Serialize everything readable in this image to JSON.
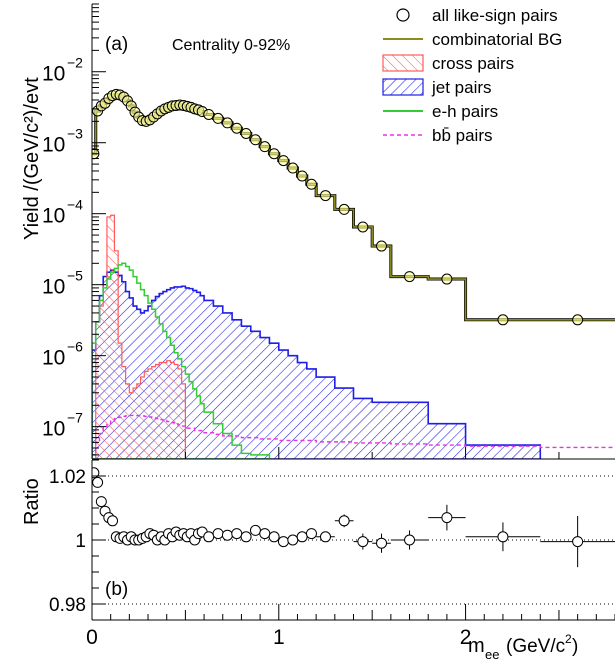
{
  "chart_data": [
    {
      "type": "histogram",
      "panel_label": "(a)",
      "annotation": "Centrality 0-92%",
      "ylabel": "Yield /(GeV/c²)/evt",
      "xlabel": "m_ee (GeV/c²)",
      "y_scale": "log",
      "xlim": [
        0,
        2.8
      ],
      "ylim": [
        3.5e-08,
        0.09
      ],
      "y_tick_labels": [
        {
          "value": 1e-07,
          "base": "10",
          "exp": "−7"
        },
        {
          "value": 1e-06,
          "base": "10",
          "exp": "−6"
        },
        {
          "value": 1e-05,
          "base": "10",
          "exp": "−5"
        },
        {
          "value": 0.0001,
          "base": "10",
          "exp": "−4"
        },
        {
          "value": 0.001,
          "base": "10",
          "exp": "−3"
        },
        {
          "value": 0.01,
          "base": "10",
          "exp": "−2"
        }
      ],
      "legend_position": "top-right",
      "legend": [
        {
          "key": "all_like_sign",
          "label": "all like-sign pairs",
          "marker": "open-circle",
          "color": "#000000"
        },
        {
          "key": "combinatorial",
          "label": "combinatorial BG",
          "marker": "line",
          "color": "#8c8c1e"
        },
        {
          "key": "cross",
          "label": "cross pairs",
          "marker": "hatch",
          "color": "#ff5a5a"
        },
        {
          "key": "jet",
          "label": "jet pairs",
          "marker": "hatch",
          "color": "#1e1ee6"
        },
        {
          "key": "eh",
          "label": "e-h pairs",
          "marker": "line",
          "color": "#33cc33"
        },
        {
          "key": "bb",
          "label": "bb̄ pairs",
          "marker": "dashed",
          "color": "#e633e6"
        }
      ],
      "series": {
        "combinatorial": {
          "edges": [
            0,
            0.02,
            0.04,
            0.06,
            0.08,
            0.1,
            0.12,
            0.14,
            0.16,
            0.18,
            0.2,
            0.22,
            0.24,
            0.26,
            0.28,
            0.3,
            0.32,
            0.34,
            0.36,
            0.38,
            0.4,
            0.42,
            0.44,
            0.46,
            0.48,
            0.5,
            0.52,
            0.54,
            0.56,
            0.58,
            0.6,
            0.65,
            0.7,
            0.75,
            0.8,
            0.85,
            0.9,
            0.95,
            1.0,
            1.05,
            1.1,
            1.15,
            1.2,
            1.3,
            1.4,
            1.5,
            1.6,
            1.8,
            2.0,
            2.4,
            2.8
          ],
          "values": [
            0.0007,
            0.0028,
            0.0033,
            0.0036,
            0.0042,
            0.0046,
            0.0048,
            0.0047,
            0.0044,
            0.0039,
            0.0033,
            0.0027,
            0.0023,
            0.00205,
            0.002,
            0.0021,
            0.0023,
            0.00255,
            0.0028,
            0.003,
            0.00315,
            0.0033,
            0.00335,
            0.0034,
            0.00335,
            0.00325,
            0.00315,
            0.003,
            0.0029,
            0.00275,
            0.0025,
            0.0022,
            0.0019,
            0.0016,
            0.00135,
            0.0011,
            0.00088,
            0.0007,
            0.00056,
            0.00044,
            0.00034,
            0.00026,
            0.00018,
            0.000115,
            6.5e-05,
            3.5e-05,
            1.3e-05,
            1.2e-05,
            3.2e-06,
            3.2e-06
          ]
        },
        "all_like_sign": {
          "x": [
            0.01,
            0.03,
            0.05,
            0.07,
            0.09,
            0.11,
            0.13,
            0.15,
            0.17,
            0.19,
            0.21,
            0.23,
            0.25,
            0.27,
            0.29,
            0.31,
            0.33,
            0.35,
            0.37,
            0.39,
            0.41,
            0.43,
            0.45,
            0.47,
            0.49,
            0.51,
            0.53,
            0.55,
            0.57,
            0.59,
            0.625,
            0.675,
            0.725,
            0.775,
            0.825,
            0.875,
            0.925,
            0.975,
            1.025,
            1.075,
            1.125,
            1.175,
            1.25,
            1.35,
            1.45,
            1.55,
            1.7,
            1.9,
            2.2,
            2.6
          ],
          "y": [
            0.0007,
            0.0028,
            0.0033,
            0.0036,
            0.0042,
            0.0046,
            0.0048,
            0.0047,
            0.0044,
            0.0039,
            0.0033,
            0.0027,
            0.0023,
            0.00205,
            0.002,
            0.0021,
            0.0023,
            0.00255,
            0.0028,
            0.003,
            0.00315,
            0.0033,
            0.00335,
            0.0034,
            0.00335,
            0.00325,
            0.00315,
            0.003,
            0.0029,
            0.00275,
            0.0025,
            0.0022,
            0.0019,
            0.0016,
            0.00135,
            0.0011,
            0.00088,
            0.0007,
            0.00056,
            0.00044,
            0.00034,
            0.00026,
            0.00018,
            0.000115,
            6.5e-05,
            3.5e-05,
            1.3e-05,
            1.2e-05,
            3.2e-06,
            3.2e-06
          ]
        },
        "cross": {
          "edges": [
            0.02,
            0.04,
            0.06,
            0.08,
            0.1,
            0.12,
            0.14,
            0.16,
            0.18,
            0.2,
            0.22,
            0.24,
            0.26,
            0.28,
            0.3,
            0.32,
            0.34,
            0.36,
            0.38,
            0.4,
            0.42,
            0.44,
            0.46,
            0.48,
            0.5
          ],
          "values": [
            3e-06,
            5e-06,
            1e-05,
            9e-05,
            9.5e-05,
            3e-05,
            1.5e-06,
            7e-07,
            4e-07,
            3e-07,
            3.5e-07,
            4e-07,
            5e-07,
            6e-07,
            6.5e-07,
            7e-07,
            7.5e-07,
            8e-07,
            8e-07,
            8.5e-07,
            8e-07,
            7.5e-07,
            6.5e-07,
            4e-07
          ]
        },
        "jet": {
          "edges": [
            0,
            0.02,
            0.04,
            0.06,
            0.08,
            0.1,
            0.12,
            0.14,
            0.16,
            0.18,
            0.2,
            0.22,
            0.24,
            0.26,
            0.28,
            0.3,
            0.32,
            0.34,
            0.36,
            0.38,
            0.4,
            0.42,
            0.44,
            0.46,
            0.48,
            0.5,
            0.52,
            0.54,
            0.56,
            0.58,
            0.6,
            0.65,
            0.7,
            0.75,
            0.8,
            0.85,
            0.9,
            0.95,
            1.0,
            1.05,
            1.1,
            1.15,
            1.2,
            1.3,
            1.4,
            1.5,
            1.6,
            1.8,
            2.0,
            2.4
          ],
          "values": [
            1.2e-06,
            3e-06,
            7e-06,
            1.3e-05,
            1.5e-05,
            1.6e-05,
            1.5e-05,
            1.35e-05,
            1.1e-05,
            8e-06,
            6.5e-06,
            5e-06,
            4.5e-06,
            4e-06,
            4.3e-06,
            5e-06,
            6e-06,
            6.8e-06,
            7.5e-06,
            8e-06,
            8.5e-06,
            9e-06,
            9.3e-06,
            9.3e-06,
            9.5e-06,
            9e-06,
            8.8e-06,
            8.3e-06,
            7.8e-06,
            7e-06,
            6e-06,
            5e-06,
            4e-06,
            3.2e-06,
            2.6e-06,
            2.2e-06,
            1.8e-06,
            1.5e-06,
            1.2e-06,
            1e-06,
            8e-07,
            6.5e-07,
            5e-07,
            3.5e-07,
            2.5e-07,
            2.2e-07,
            2.2e-07,
            1.1e-07,
            5.5e-08
          ]
        },
        "eh": {
          "edges": [
            0,
            0.02,
            0.04,
            0.06,
            0.08,
            0.1,
            0.12,
            0.14,
            0.16,
            0.18,
            0.2,
            0.22,
            0.24,
            0.26,
            0.28,
            0.3,
            0.32,
            0.34,
            0.36,
            0.38,
            0.4,
            0.42,
            0.44,
            0.46,
            0.48,
            0.5,
            0.52,
            0.54,
            0.56,
            0.58,
            0.6,
            0.65,
            0.7,
            0.75,
            0.8,
            0.85,
            0.9,
            0.95
          ],
          "values": [
            1.5e-06,
            3e-06,
            6e-06,
            9e-06,
            1.2e-05,
            1.5e-05,
            1.7e-05,
            1.9e-05,
            2e-05,
            1.8e-05,
            1.6e-05,
            1.3e-05,
            1.05e-05,
            8.5e-06,
            7e-06,
            5.5e-06,
            4.5e-06,
            3.5e-06,
            2.8e-06,
            2.2e-06,
            1.8e-06,
            1.4e-06,
            1.1e-06,
            9e-07,
            7e-07,
            5.5e-07,
            4.3e-07,
            3.4e-07,
            2.7e-07,
            2.1e-07,
            1.6e-07,
            1.1e-07,
            8e-08,
            5.5e-08,
            4.2e-08,
            4e-08,
            4e-08
          ]
        },
        "bb": {
          "edges": [
            0,
            0.02,
            0.04,
            0.06,
            0.08,
            0.1,
            0.12,
            0.14,
            0.16,
            0.18,
            0.2,
            0.22,
            0.24,
            0.26,
            0.28,
            0.3,
            0.32,
            0.34,
            0.36,
            0.38,
            0.4,
            0.42,
            0.44,
            0.46,
            0.48,
            0.5,
            0.55,
            0.6,
            0.65,
            0.7,
            0.8,
            0.9,
            1.0,
            1.2,
            1.4,
            1.6,
            1.8,
            2.0,
            2.4,
            2.8
          ],
          "values": [
            4e-08,
            6e-08,
            8e-08,
            1e-07,
            1.1e-07,
            1.2e-07,
            1.3e-07,
            1.35e-07,
            1.4e-07,
            1.42e-07,
            1.44e-07,
            1.44e-07,
            1.43e-07,
            1.42e-07,
            1.4e-07,
            1.37e-07,
            1.34e-07,
            1.3e-07,
            1.26e-07,
            1.22e-07,
            1.18e-07,
            1.14e-07,
            1.1e-07,
            1.06e-07,
            1.02e-07,
            9.5e-08,
            8.8e-08,
            8.2e-08,
            7.8e-08,
            7.4e-08,
            7e-08,
            6.7e-08,
            6.4e-08,
            6.1e-08,
            5.9e-08,
            5.7e-08,
            5.5e-08,
            5.3e-08,
            5.1e-08
          ]
        }
      }
    },
    {
      "type": "scatter",
      "panel_label": "(b)",
      "ylabel": "Ratio",
      "xlabel": "m_ee (GeV/c²)",
      "xlim": [
        0,
        2.8
      ],
      "ylim": [
        0.975,
        1.025
      ],
      "y_ticks": [
        0.98,
        1,
        1.02
      ],
      "y_tick_labels": [
        "0.98",
        "1",
        "1.02"
      ],
      "x_ticks": [
        0,
        1,
        2
      ],
      "x_tick_labels": [
        "0",
        "1",
        "2"
      ],
      "reference_lines": [
        1.02,
        1.0,
        0.98
      ],
      "points": {
        "x": [
          0.01,
          0.03,
          0.05,
          0.07,
          0.09,
          0.11,
          0.13,
          0.15,
          0.17,
          0.19,
          0.21,
          0.23,
          0.25,
          0.27,
          0.29,
          0.31,
          0.33,
          0.35,
          0.37,
          0.39,
          0.41,
          0.43,
          0.45,
          0.47,
          0.49,
          0.51,
          0.53,
          0.55,
          0.57,
          0.59,
          0.625,
          0.675,
          0.725,
          0.775,
          0.825,
          0.875,
          0.925,
          0.975,
          1.025,
          1.075,
          1.125,
          1.175,
          1.25,
          1.35,
          1.45,
          1.55,
          1.7,
          1.9,
          2.2,
          2.6
        ],
        "y": [
          1.021,
          1.018,
          1.012,
          1.009,
          1.007,
          1.006,
          1.001,
          1.0005,
          1.001,
          1.0,
          1.001,
          1.0,
          1.0,
          1.0005,
          1.001,
          1.002,
          1.0015,
          1.0,
          1.001,
          1.0,
          1.002,
          1.001,
          1.0025,
          1.0015,
          1.002,
          1.001,
          1.002,
          1.0,
          1.002,
          1.0025,
          1.001,
          1.002,
          1.0015,
          1.002,
          1.001,
          1.003,
          1.002,
          1.001,
          0.9995,
          1.0,
          1.001,
          1.002,
          1.001,
          1.006,
          0.9995,
          0.999,
          1.0,
          1.007,
          1.001,
          0.9995
        ],
        "yerr": [
          0.001,
          0.001,
          0.001,
          0.001,
          0.001,
          0.001,
          0.001,
          0.001,
          0.001,
          0.001,
          0.001,
          0.001,
          0.001,
          0.001,
          0.001,
          0.001,
          0.001,
          0.001,
          0.001,
          0.001,
          0.001,
          0.001,
          0.001,
          0.001,
          0.001,
          0.001,
          0.001,
          0.001,
          0.001,
          0.001,
          0.001,
          0.001,
          0.001,
          0.001,
          0.001,
          0.001,
          0.001,
          0.001,
          0.001,
          0.001,
          0.001,
          0.001,
          0.0015,
          0.002,
          0.0025,
          0.003,
          0.003,
          0.004,
          0.0045,
          0.008
        ],
        "xerr": [
          0.01,
          0.01,
          0.01,
          0.01,
          0.01,
          0.01,
          0.01,
          0.01,
          0.01,
          0.01,
          0.01,
          0.01,
          0.01,
          0.01,
          0.01,
          0.01,
          0.01,
          0.01,
          0.01,
          0.01,
          0.01,
          0.01,
          0.01,
          0.01,
          0.01,
          0.01,
          0.01,
          0.01,
          0.01,
          0.01,
          0.025,
          0.025,
          0.025,
          0.025,
          0.025,
          0.025,
          0.025,
          0.025,
          0.025,
          0.025,
          0.025,
          0.025,
          0.05,
          0.05,
          0.05,
          0.05,
          0.1,
          0.1,
          0.2,
          0.2
        ]
      }
    }
  ]
}
